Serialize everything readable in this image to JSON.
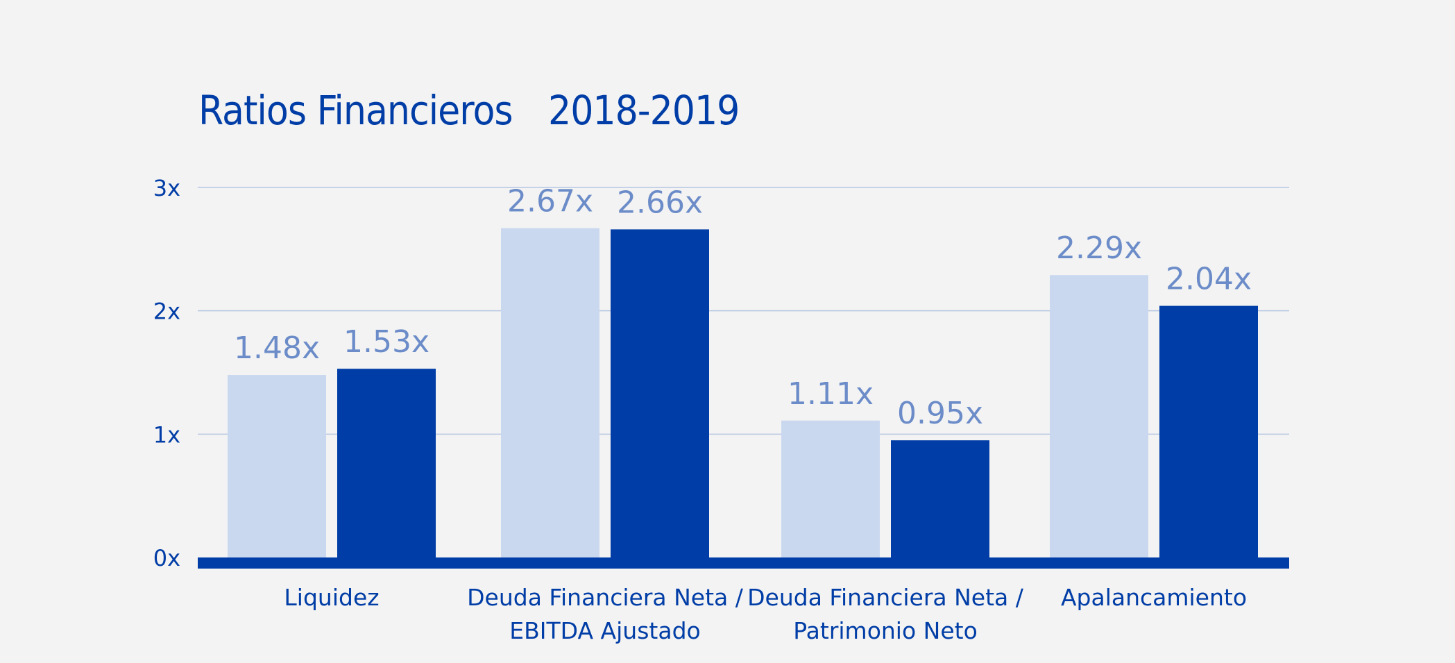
{
  "chart_data": {
    "type": "bar",
    "title": "Ratios Financieros",
    "subtitle": "2018-2019",
    "categories": [
      [
        "Liquidez"
      ],
      [
        "Deuda Financiera Neta /",
        "EBITDA Ajustado"
      ],
      [
        "Deuda Financiera Neta /",
        "Patrimonio Neto"
      ],
      [
        "Apalancamiento"
      ]
    ],
    "series": [
      {
        "values": [
          1.48,
          2.67,
          1.11,
          2.29
        ],
        "labels": [
          "1.48x",
          "2.67x",
          "1.11x",
          "2.29x"
        ],
        "color": "#cad8ef"
      },
      {
        "values": [
          1.53,
          2.66,
          0.95,
          2.04
        ],
        "labels": [
          "1.53x",
          "2.66x",
          "0.95x",
          "2.04x"
        ],
        "color": "#003da6"
      }
    ],
    "y_ticks": [
      {
        "value": 0,
        "label": "0x"
      },
      {
        "value": 1,
        "label": "1x"
      },
      {
        "value": 2,
        "label": "2x"
      },
      {
        "value": 3,
        "label": "3x"
      }
    ],
    "ylim": [
      0,
      3
    ],
    "grid": true,
    "colors": {
      "title": "#003da6",
      "axis": "#003da6",
      "label": "#6b8cc8",
      "grid": "#b6c6e3",
      "background": "#f3f3f3"
    }
  }
}
